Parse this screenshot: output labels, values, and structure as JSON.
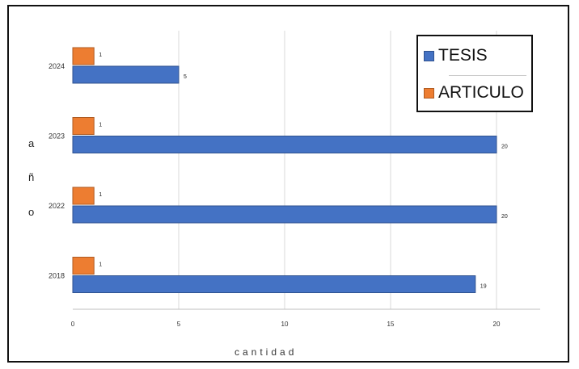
{
  "chart_data": {
    "type": "bar",
    "orientation": "horizontal",
    "categories": [
      "2018",
      "2022",
      "2023",
      "2024"
    ],
    "series": [
      {
        "name": "TESIS",
        "color": "#4472c4",
        "values": [
          19,
          20,
          20,
          5
        ]
      },
      {
        "name": "ARTICULO",
        "color": "#ed7d31",
        "values": [
          1,
          1,
          1,
          1
        ]
      }
    ],
    "xlim": [
      0,
      22
    ],
    "xticks": [
      0,
      5,
      10,
      15,
      20
    ],
    "xlabel": "cantidad",
    "ylabel_letters": [
      "a",
      "ñ",
      "o"
    ],
    "grid": true,
    "legend_position": "top-right"
  }
}
